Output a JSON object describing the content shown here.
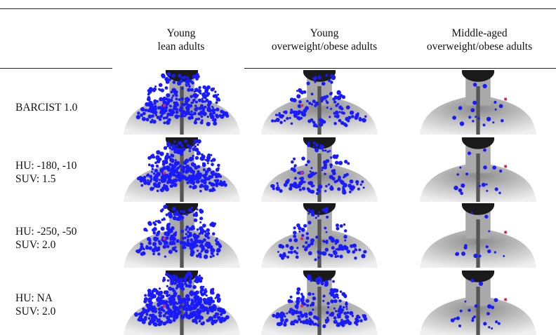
{
  "columns": [
    {
      "line1": "Young",
      "line2": "lean adults",
      "density": 1.0,
      "style": "lean"
    },
    {
      "line1": "Young",
      "line2": "overweight/obese adults",
      "density": 0.7,
      "style": "young-ob"
    },
    {
      "line1": "Middle-aged",
      "line2": "overweight/obese adults",
      "density": 0.25,
      "style": "middle"
    }
  ],
  "rows": [
    {
      "line1": "BARCIST 1.0",
      "line2": "",
      "scale": 1.0
    },
    {
      "line1": "HU: -180, -10",
      "line2": "SUV: 1.5",
      "scale": 1.05
    },
    {
      "line1": "HU: -250, -50",
      "line2": "SUV: 2.0",
      "scale": 0.8
    },
    {
      "line1": "HU: NA",
      "line2": "SUV: 2.0",
      "scale": 1.45
    }
  ],
  "colors": {
    "segmentation": "#1a1aff",
    "highlight": "#d0306a",
    "body_gray": "#c9c9c9"
  }
}
